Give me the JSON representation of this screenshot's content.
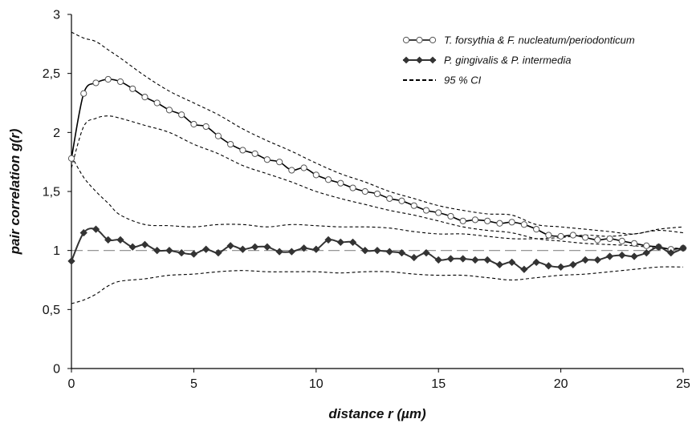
{
  "chart_data": {
    "type": "line",
    "title": "",
    "xlabel": "distance r (µm)",
    "ylabel": "pair correlation g(r)",
    "xlim": [
      0,
      25
    ],
    "ylim": [
      0,
      3
    ],
    "x_ticks": [
      0,
      5,
      10,
      15,
      20,
      25
    ],
    "x_tick_labels": [
      "0",
      "5",
      "10",
      "15",
      "20",
      "25"
    ],
    "y_ticks": [
      0,
      0.5,
      1,
      1.5,
      2,
      2.5,
      3
    ],
    "y_tick_labels": [
      "0",
      "0,5",
      "1",
      "1,5",
      "2",
      "2,5",
      "3"
    ],
    "grid": false,
    "legend_position": "top-right",
    "reference_line": {
      "y": 1,
      "style": "dashed",
      "color": "#888888"
    },
    "series": [
      {
        "name": "T. forsythia & F. nucleatum/periodonticum",
        "style": "solid",
        "marker": "open-circle",
        "color": "#000000",
        "x": [
          0,
          0.5,
          1,
          1.5,
          2,
          2.5,
          3,
          3.5,
          4,
          4.5,
          5,
          5.5,
          6,
          6.5,
          7,
          7.5,
          8,
          8.5,
          9,
          9.5,
          10,
          10.5,
          11,
          11.5,
          12,
          12.5,
          13,
          13.5,
          14,
          14.5,
          15,
          15.5,
          16,
          16.5,
          17,
          17.5,
          18,
          18.5,
          19,
          19.5,
          20,
          20.5,
          21,
          21.5,
          22,
          22.5,
          23,
          23.5,
          24,
          24.5,
          25
        ],
        "y": [
          1.78,
          2.33,
          2.42,
          2.45,
          2.43,
          2.37,
          2.3,
          2.25,
          2.19,
          2.15,
          2.07,
          2.05,
          1.97,
          1.9,
          1.85,
          1.82,
          1.77,
          1.75,
          1.68,
          1.7,
          1.64,
          1.6,
          1.57,
          1.53,
          1.5,
          1.48,
          1.44,
          1.42,
          1.38,
          1.34,
          1.32,
          1.29,
          1.25,
          1.26,
          1.25,
          1.23,
          1.24,
          1.22,
          1.18,
          1.13,
          1.12,
          1.13,
          1.11,
          1.09,
          1.1,
          1.08,
          1.06,
          1.04,
          1.03,
          1.01,
          1.02
        ]
      },
      {
        "name": "P. gingivalis & P. intermedia",
        "style": "solid",
        "marker": "filled-diamond",
        "color": "#333333",
        "x": [
          0,
          0.5,
          1,
          1.5,
          2,
          2.5,
          3,
          3.5,
          4,
          4.5,
          5,
          5.5,
          6,
          6.5,
          7,
          7.5,
          8,
          8.5,
          9,
          9.5,
          10,
          10.5,
          11,
          11.5,
          12,
          12.5,
          13,
          13.5,
          14,
          14.5,
          15,
          15.5,
          16,
          16.5,
          17,
          17.5,
          18,
          18.5,
          19,
          19.5,
          20,
          20.5,
          21,
          21.5,
          22,
          22.5,
          23,
          23.5,
          24,
          24.5,
          25
        ],
        "y": [
          0.91,
          1.15,
          1.18,
          1.09,
          1.09,
          1.03,
          1.05,
          1.0,
          1.0,
          0.98,
          0.97,
          1.01,
          0.98,
          1.04,
          1.01,
          1.03,
          1.03,
          0.99,
          0.99,
          1.02,
          1.01,
          1.09,
          1.07,
          1.07,
          1.0,
          1.0,
          0.99,
          0.98,
          0.94,
          0.98,
          0.92,
          0.93,
          0.93,
          0.92,
          0.92,
          0.88,
          0.9,
          0.84,
          0.9,
          0.87,
          0.86,
          0.88,
          0.92,
          0.92,
          0.95,
          0.96,
          0.95,
          0.98,
          1.03,
          0.98,
          1.02
        ]
      },
      {
        "name": "95 % CI",
        "style": "dashed",
        "color": "#000000",
        "bands": [
          {
            "x": [
              0,
              0.5,
              1,
              1.5,
              2,
              3,
              4,
              5,
              6,
              7,
              8,
              9,
              10,
              11,
              12,
              13,
              14,
              15,
              16,
              17,
              18,
              19,
              20,
              21,
              22,
              23,
              24,
              25
            ],
            "y": [
              2.85,
              2.8,
              2.77,
              2.7,
              2.63,
              2.48,
              2.35,
              2.25,
              2.15,
              2.03,
              1.93,
              1.84,
              1.74,
              1.65,
              1.58,
              1.5,
              1.44,
              1.38,
              1.34,
              1.31,
              1.3,
              1.22,
              1.2,
              1.18,
              1.16,
              1.14,
              1.18,
              1.2
            ]
          },
          {
            "x": [
              0,
              0.5,
              1,
              1.5,
              2,
              3,
              4,
              5,
              6,
              7,
              8,
              9,
              10,
              11,
              12,
              13,
              14,
              15,
              16,
              17,
              18,
              19,
              20,
              21,
              22,
              23,
              24,
              25
            ],
            "y": [
              1.7,
              2.05,
              2.12,
              2.14,
              2.12,
              2.06,
              2.0,
              1.9,
              1.82,
              1.72,
              1.65,
              1.58,
              1.5,
              1.44,
              1.39,
              1.34,
              1.3,
              1.25,
              1.2,
              1.17,
              1.15,
              1.1,
              1.08,
              1.06,
              1.05,
              1.04,
              1.02,
              1.02
            ]
          },
          {
            "x": [
              0,
              0.5,
              1,
              1.5,
              2,
              3,
              4,
              5,
              6,
              7,
              8,
              9,
              10,
              11,
              12,
              13,
              14,
              15,
              16,
              17,
              18,
              19,
              20,
              21,
              22,
              23,
              24,
              25
            ],
            "y": [
              1.8,
              1.62,
              1.5,
              1.4,
              1.3,
              1.22,
              1.21,
              1.2,
              1.22,
              1.22,
              1.2,
              1.22,
              1.21,
              1.2,
              1.2,
              1.19,
              1.16,
              1.14,
              1.14,
              1.12,
              1.1,
              1.1,
              1.11,
              1.13,
              1.12,
              1.14,
              1.17,
              1.15
            ]
          },
          {
            "x": [
              0,
              0.5,
              1,
              1.5,
              2,
              3,
              4,
              5,
              6,
              7,
              8,
              9,
              10,
              11,
              12,
              13,
              14,
              15,
              16,
              17,
              18,
              19,
              20,
              21,
              22,
              23,
              24,
              25
            ],
            "y": [
              0.55,
              0.58,
              0.63,
              0.7,
              0.74,
              0.76,
              0.79,
              0.8,
              0.82,
              0.83,
              0.82,
              0.82,
              0.82,
              0.81,
              0.82,
              0.82,
              0.8,
              0.79,
              0.79,
              0.77,
              0.75,
              0.77,
              0.79,
              0.8,
              0.82,
              0.84,
              0.86,
              0.86
            ]
          }
        ]
      }
    ]
  }
}
